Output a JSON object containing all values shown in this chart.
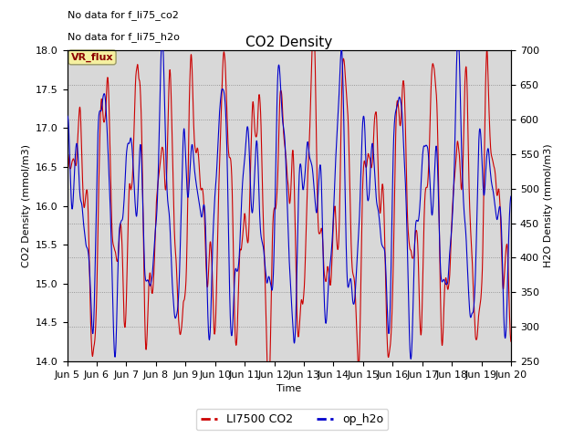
{
  "title": "CO2 Density",
  "xlabel": "Time",
  "ylabel_left": "CO2 Density (mmol/m3)",
  "ylabel_right": "H2O Density (mmol/m3)",
  "ylim_left": [
    14.0,
    18.0
  ],
  "ylim_right": [
    250,
    700
  ],
  "annotations": [
    "No data for f_li75_co2",
    "No data for f_li75_h2o"
  ],
  "legend_label1": "LI7500 CO2",
  "legend_label2": "op_h2o",
  "vr_flux_label": "VR_flux",
  "color_co2": "#cc0000",
  "color_h2o": "#0000cc",
  "bg_color": "#d8d8d8",
  "x_tick_labels": [
    "Jun 5",
    "Jun 6",
    "Jun 7",
    "Jun 8",
    "Jun 9",
    "Jun 10",
    "Jun 11",
    "Jun 12",
    "Jun 13",
    "Jun 14",
    "Jun 15",
    "Jun 16",
    "Jun 17",
    "Jun 18",
    "Jun 19",
    "Jun 20"
  ],
  "n_points": 3000
}
